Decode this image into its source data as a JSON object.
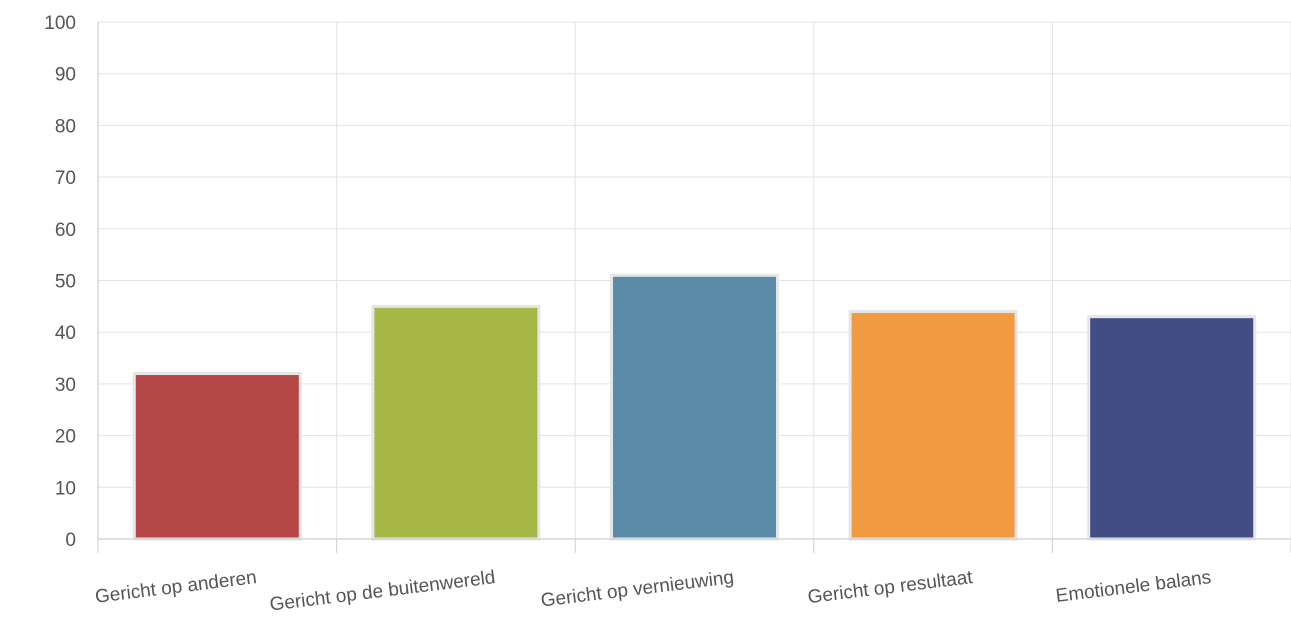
{
  "chart_data": {
    "type": "bar",
    "title": "",
    "xlabel": "",
    "ylabel": "",
    "ylim": [
      0,
      100
    ],
    "yticks": [
      0,
      10,
      20,
      30,
      40,
      50,
      60,
      70,
      80,
      90,
      100
    ],
    "grid": true,
    "categories": [
      "Gericht op anderen",
      "Gericht op de buitenwereld",
      "Gericht op vernieuwing",
      "Gericht op resultaat",
      "Emotionele balans"
    ],
    "values": [
      32,
      45,
      51,
      44,
      43
    ],
    "colors": [
      "#b44646",
      "#a8b847",
      "#5a8ca8",
      "#f09a42",
      "#424d86"
    ]
  }
}
